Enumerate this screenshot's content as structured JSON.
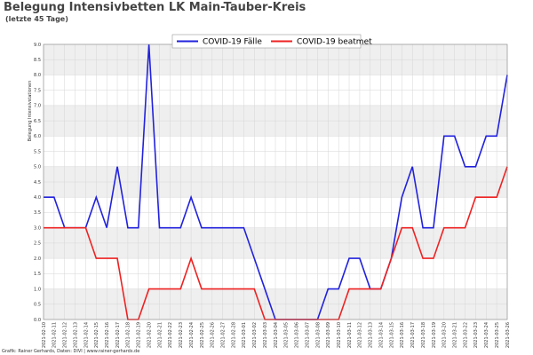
{
  "header": {
    "title": "Belegung Intensivbetten LK Main-Tauber-Kreis",
    "subtitle": "(letzte 45 Tage)"
  },
  "footer": {
    "credit": "Grafik: Rainer Gerhards, Daten: DIVI | www.rainer-gerhards.de"
  },
  "chart_data": {
    "type": "line",
    "ylabel": "Belegung Intensivstationen",
    "xlabel": "",
    "ylim": [
      0,
      9
    ],
    "yticks": [
      "0.0",
      "0.5",
      "1.0",
      "1.5",
      "2.0",
      "2.5",
      "3.0",
      "3.5",
      "4.0",
      "4.5",
      "5.0",
      "5.5",
      "6.0",
      "6.5",
      "7.0",
      "7.5",
      "8.0",
      "8.5",
      "9.0"
    ],
    "grid": true,
    "legend_position": "top-center",
    "x": [
      "2021-02-10",
      "2021-02-11",
      "2021-02-12",
      "2021-02-13",
      "2021-02-14",
      "2021-02-15",
      "2021-02-16",
      "2021-02-17",
      "2021-02-18",
      "2021-02-19",
      "2021-02-20",
      "2021-02-21",
      "2021-02-22",
      "2021-02-23",
      "2021-02-24",
      "2021-02-25",
      "2021-02-26",
      "2021-02-27",
      "2021-02-28",
      "2021-03-01",
      "2021-03-02",
      "2021-03-03",
      "2021-03-04",
      "2021-03-05",
      "2021-03-06",
      "2021-03-07",
      "2021-03-08",
      "2021-03-09",
      "2021-03-10",
      "2021-03-11",
      "2021-03-12",
      "2021-03-13",
      "2021-03-14",
      "2021-03-15",
      "2021-03-16",
      "2021-03-17",
      "2021-03-18",
      "2021-03-19",
      "2021-03-20",
      "2021-03-21",
      "2021-03-22",
      "2021-03-23",
      "2021-03-24",
      "2021-03-25",
      "2021-03-26"
    ],
    "series": [
      {
        "name": "COVID-19 Fälle",
        "color": "#2222dd",
        "values": [
          4,
          4,
          3,
          3,
          3,
          4,
          3,
          5,
          3,
          3,
          9,
          3,
          3,
          3,
          4,
          3,
          3,
          3,
          3,
          3,
          2,
          1,
          0,
          0,
          0,
          0,
          0,
          1,
          1,
          2,
          2,
          1,
          1,
          2,
          4,
          5,
          3,
          3,
          6,
          6,
          5,
          5,
          6,
          6,
          8
        ]
      },
      {
        "name": "COVID-19 beatmet",
        "color": "#ee2222",
        "values": [
          3,
          3,
          3,
          3,
          3,
          2,
          2,
          2,
          0,
          0,
          1,
          1,
          1,
          1,
          2,
          1,
          1,
          1,
          1,
          1,
          1,
          0,
          0,
          0,
          0,
          0,
          0,
          0,
          0,
          1,
          1,
          1,
          1,
          2,
          3,
          3,
          2,
          2,
          3,
          3,
          3,
          4,
          4,
          4,
          5
        ]
      }
    ]
  }
}
